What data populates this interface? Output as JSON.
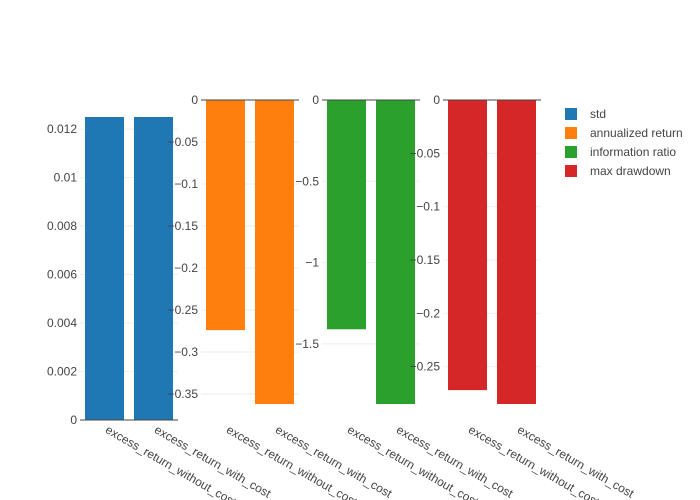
{
  "chart_data": {
    "type": "bar",
    "categories": [
      "excess_return_without_cost",
      "excess_return_with_cost"
    ],
    "legend_position": "top-right",
    "grid": true,
    "panels": [
      {
        "name": "std",
        "color": "#1f77b4",
        "values": [
          0.0125,
          0.0125
        ],
        "ylim": [
          0,
          0.0132
        ],
        "ticks": [
          {
            "v": 0,
            "label": "0"
          },
          {
            "v": 0.002,
            "label": "0.002"
          },
          {
            "v": 0.004,
            "label": "0.004"
          },
          {
            "v": 0.006,
            "label": "0.006"
          },
          {
            "v": 0.008,
            "label": "0.008"
          },
          {
            "v": 0.01,
            "label": "0.01"
          },
          {
            "v": 0.012,
            "label": "0.012"
          }
        ]
      },
      {
        "name": "annualized return",
        "color": "#ff7f0e",
        "values": [
          -0.274,
          -0.362
        ],
        "ylim": [
          -0.381,
          0
        ],
        "ticks": [
          {
            "v": 0,
            "label": "0"
          },
          {
            "v": -0.05,
            "label": "−0.05"
          },
          {
            "v": -0.1,
            "label": "−0.1"
          },
          {
            "v": -0.15,
            "label": "−0.15"
          },
          {
            "v": -0.2,
            "label": "−0.2"
          },
          {
            "v": -0.25,
            "label": "−0.25"
          },
          {
            "v": -0.3,
            "label": "−0.3"
          },
          {
            "v": -0.35,
            "label": "−0.35"
          }
        ]
      },
      {
        "name": "information ratio",
        "color": "#2ca02c",
        "values": [
          -1.41,
          -1.87
        ],
        "ylim": [
          -1.968,
          0
        ],
        "ticks": [
          {
            "v": 0,
            "label": "0"
          },
          {
            "v": -0.5,
            "label": "−0.5"
          },
          {
            "v": -1,
            "label": "−1"
          },
          {
            "v": -1.5,
            "label": "−1.5"
          }
        ]
      },
      {
        "name": "max drawdown",
        "color": "#d62728",
        "values": [
          -0.272,
          -0.285
        ],
        "ylim": [
          -0.3,
          0
        ],
        "ticks": [
          {
            "v": 0,
            "label": "0"
          },
          {
            "v": -0.05,
            "label": "−0.05"
          },
          {
            "v": -0.1,
            "label": "−0.1"
          },
          {
            "v": -0.15,
            "label": "−0.15"
          },
          {
            "v": -0.2,
            "label": "−0.2"
          },
          {
            "v": -0.25,
            "label": "−0.25"
          }
        ]
      }
    ]
  }
}
